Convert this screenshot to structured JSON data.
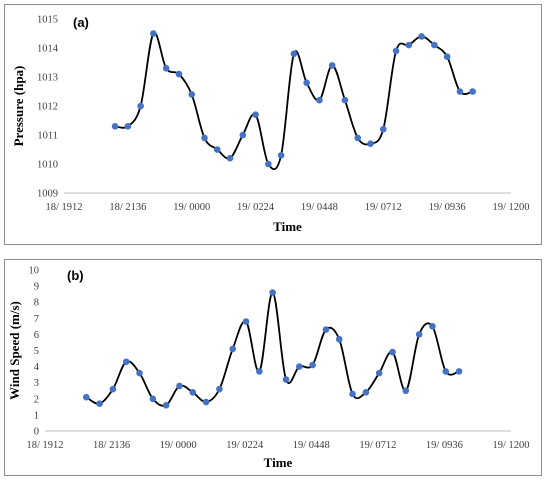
{
  "chart_data": [
    {
      "type": "line",
      "panel_label": "(a)",
      "xlabel": "Time",
      "ylabel": "Pressure (hpa)",
      "ylim": [
        1009,
        1015
      ],
      "yticks": [
        "1009",
        "1010",
        "1011",
        "1012",
        "1013",
        "1014",
        "1015"
      ],
      "xticks": [
        "18/ 1912",
        "18/ 2136",
        "19/ 0000",
        "19/ 0224",
        "19/ 0448",
        "19/ 0712",
        "19/ 0936",
        "19/ 1200"
      ],
      "xlim": [
        0,
        7
      ],
      "grid": false,
      "series": [
        {
          "color": "#4472c4",
          "line_color": "#000000",
          "x": [
            0.8,
            1.0,
            1.2,
            1.4,
            1.6,
            1.8,
            2.0,
            2.2,
            2.4,
            2.6,
            2.8,
            3.0,
            3.2,
            3.4,
            3.6,
            3.8,
            4.0,
            4.2,
            4.4,
            4.6,
            4.8,
            5.0,
            5.2,
            5.4,
            5.6,
            5.8,
            6.0,
            6.2,
            6.4
          ],
          "y": [
            1011.3,
            1011.3,
            1012.0,
            1014.5,
            1013.3,
            1013.1,
            1012.4,
            1010.9,
            1010.5,
            1010.2,
            1011.0,
            1011.7,
            1010.0,
            1010.3,
            1013.8,
            1012.8,
            1012.2,
            1013.4,
            1012.2,
            1010.9,
            1010.7,
            1011.2,
            1013.9,
            1014.1,
            1014.4,
            1014.1,
            1013.7,
            1012.5,
            1012.5
          ]
        }
      ]
    },
    {
      "type": "line",
      "panel_label": "(b)",
      "xlabel": "Time",
      "ylabel": "Wind Speed (m/s)",
      "ylim": [
        0,
        10
      ],
      "yticks": [
        "0",
        "1",
        "2",
        "3",
        "4",
        "5",
        "6",
        "7",
        "8",
        "9",
        "10"
      ],
      "xticks": [
        "18/ 1912",
        "18/ 2136",
        "19/ 0000",
        "19/ 0224",
        "19/ 0448",
        "19/ 0712",
        "19/ 0936",
        "19/ 1200"
      ],
      "xlim": [
        0,
        7
      ],
      "grid": false,
      "series": [
        {
          "color": "#4472c4",
          "line_color": "#000000",
          "x": [
            0.62,
            0.82,
            1.02,
            1.22,
            1.42,
            1.62,
            1.82,
            2.02,
            2.22,
            2.42,
            2.62,
            2.82,
            3.02,
            3.22,
            3.42,
            3.62,
            3.82,
            4.02,
            4.22,
            4.42,
            4.62,
            4.82,
            5.02,
            5.22,
            5.42,
            5.62,
            5.82,
            6.02,
            6.22
          ],
          "y": [
            2.1,
            1.7,
            2.6,
            4.3,
            3.6,
            2.0,
            1.6,
            2.8,
            2.4,
            1.8,
            2.6,
            5.1,
            6.8,
            3.7,
            8.6,
            3.2,
            4.0,
            4.1,
            6.3,
            5.7,
            2.3,
            2.4,
            3.6,
            4.9,
            2.5,
            6.0,
            6.5,
            3.7,
            3.7
          ]
        }
      ]
    }
  ]
}
